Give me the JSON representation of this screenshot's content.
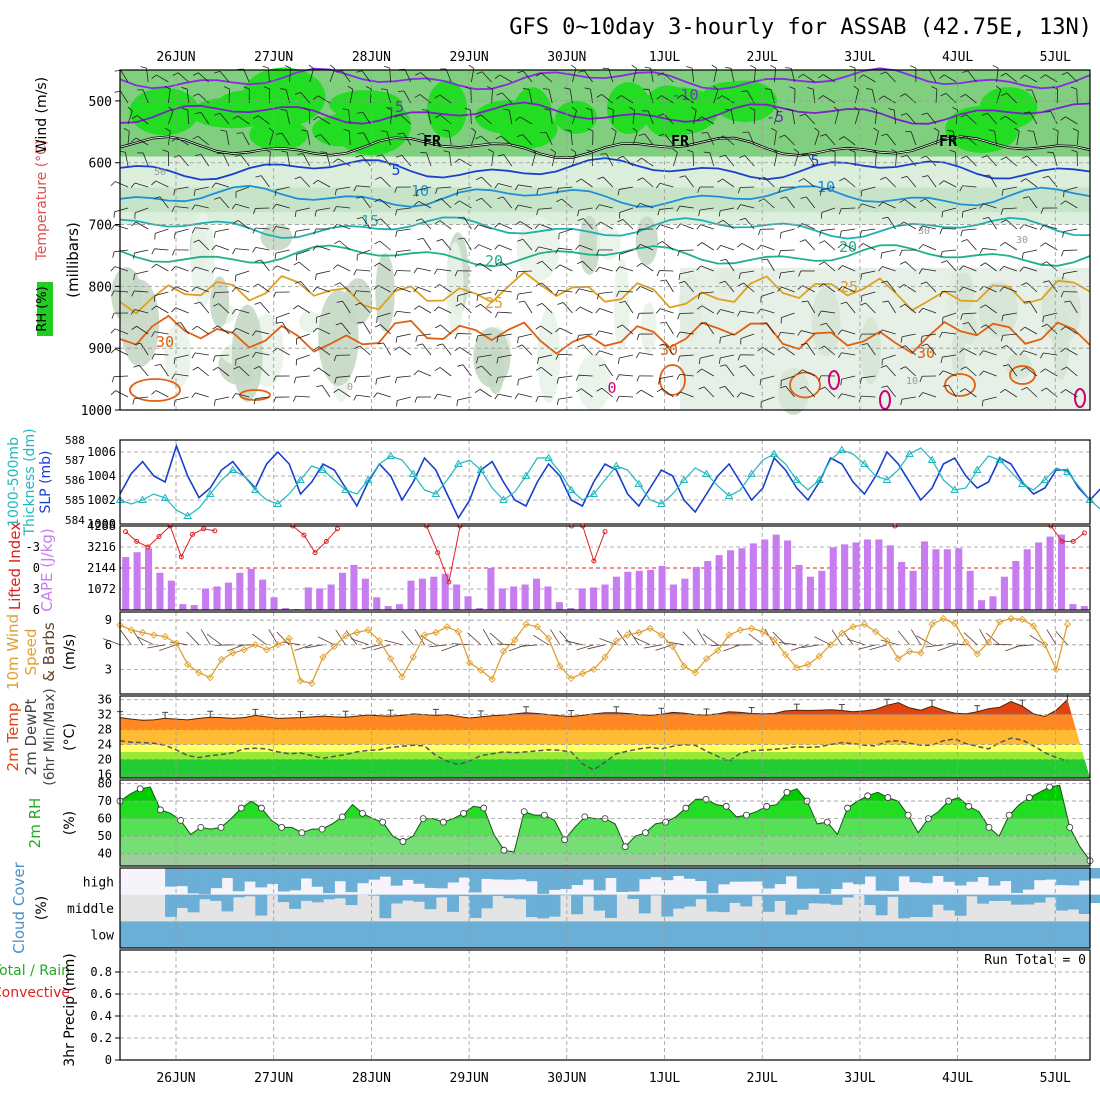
{
  "title": "GFS 0~10day 3-hourly for ASSAB (42.75E, 13N)",
  "dates": [
    "26JUN",
    "27JUN",
    "28JUN",
    "29JUN",
    "30JUN",
    "1JUL",
    "2JUL",
    "3JUL",
    "4JUL",
    "5JUL"
  ],
  "colors": {
    "rh_green": "#00dd00",
    "wind_black": "#000000",
    "slp_blue": "#1a3fcc",
    "thick_cyan": "#22b8c0",
    "li_red": "#e02020",
    "cape_purple": "#c77cf0",
    "wind10m_orange": "#e0a030",
    "temp_orange": "#f06010",
    "rh2m_green": "#22cc22",
    "cloud_blue": "#6baed6"
  },
  "chart_data": [
    {
      "type": "heatmap",
      "panel": "upper_air",
      "ylabels": [
        "RH (%)",
        "Temperature (°C)",
        "Wind (m/s)",
        "(millibars)"
      ],
      "y_ticks": [
        500,
        600,
        700,
        800,
        900,
        1000
      ],
      "ylim": [
        1000,
        450
      ],
      "contour_labels": [
        "-10",
        "-5",
        "-5",
        "FR",
        "FR",
        "FR",
        "5",
        "5",
        "10",
        "10",
        "15",
        "20",
        "20",
        "25",
        "25",
        "30",
        "30",
        "30",
        "0",
        "50",
        "30",
        "30",
        "10",
        "0"
      ],
      "isotherms": [
        {
          "label": "-10",
          "p": 465
        },
        {
          "label": "-5",
          "p": 520
        },
        {
          "label": "FR",
          "p": 575
        },
        {
          "label": "5",
          "p": 610
        },
        {
          "label": "10",
          "p": 655
        },
        {
          "label": "15",
          "p": 705
        },
        {
          "label": "20",
          "p": 750
        },
        {
          "label": "25",
          "p": 810
        },
        {
          "label": "30",
          "p": 880
        }
      ]
    },
    {
      "type": "line",
      "panel": "slp_thickness",
      "ylabels": [
        "1000-500mb",
        "Thickness (dm)",
        "SLP (mb)"
      ],
      "thickness_ticks": [
        "588",
        "587",
        "586",
        "585",
        "584"
      ],
      "slp_ticks": [
        "1006",
        "1004",
        "1002",
        "1000"
      ],
      "thickness_range": [
        583.8,
        588
      ],
      "slp_range": [
        1000,
        1007
      ],
      "series": [
        {
          "values": [
            1002.5,
            1004.2,
            1005.2,
            1004,
            1003.5,
            1006.5,
            1004,
            1002.2,
            1003,
            1004.5,
            1005.2,
            1004,
            1003,
            1005,
            1006,
            1005,
            1002.5,
            1003.5,
            1005,
            1004.5,
            1003,
            1001.5,
            1003.5,
            1005,
            1004,
            1002,
            1003.5,
            1005.5,
            1004.5,
            1002.5,
            1000.5,
            1002,
            1004.5,
            1005.2,
            1003.5,
            1002,
            1001.5,
            1003.5,
            1005,
            1004,
            1002,
            1001.5,
            1003.5,
            1005,
            1004.5,
            1002.5,
            1001.5,
            1003,
            1004.5,
            1004,
            1002,
            1001,
            1002.5,
            1004,
            1005,
            1003.5,
            1002,
            1003,
            1005.5,
            1004.5,
            1003,
            1002,
            1003.5,
            1005.5,
            1005,
            1003.5,
            1002.5,
            1004,
            1006,
            1005,
            1003.5,
            1002,
            1003,
            1005,
            1005.5,
            1004,
            1003,
            1003.5,
            1005.5,
            1005,
            1003.5,
            1002.5,
            1003,
            1004.5,
            1004.5,
            1003,
            1002,
            1003,
            1004.5,
            1004,
            1003.5,
            1002.5,
            1003.5,
            1004.8,
            1005.2
          ]
        },
        {
          "values": [
            585,
            584.8,
            585,
            585.3,
            585.1,
            584.5,
            584.2,
            584.6,
            585.3,
            586,
            586.5,
            586.2,
            585.5,
            585,
            584.8,
            585.3,
            586,
            586.7,
            586.5,
            586,
            585.5,
            585.3,
            586,
            586.8,
            587.2,
            587,
            586.3,
            585.5,
            585.3,
            586,
            586.8,
            587,
            586.5,
            585.6,
            585,
            585.4,
            586.2,
            587.1,
            587.1,
            586.4,
            585.5,
            585,
            585.3,
            586,
            586.7,
            586.5,
            585.8,
            585,
            584.8,
            585.3,
            586,
            586.6,
            586.3,
            585.7,
            585.2,
            585.5,
            586.3,
            587,
            587.3,
            586.8,
            586,
            585.5,
            586,
            587,
            587.5,
            587.3,
            586.8,
            586.2,
            586,
            586.5,
            587.3,
            587.6,
            587,
            586,
            585.5,
            585.6,
            586.5,
            587.2,
            587,
            586.4,
            585.8,
            585.5,
            586,
            586.6,
            586.4,
            585.7,
            585,
            584.5,
            584.8,
            585.5,
            586,
            585.5,
            584.5,
            584.2,
            585
          ]
        }
      ]
    },
    {
      "type": "bar",
      "panel": "li_cape",
      "ylabels": [
        "Lifted Index",
        "CAPE (J/kg)"
      ],
      "li_ticks": [
        "-3",
        "0",
        "3",
        "6"
      ],
      "cape_ticks": [
        "4288",
        "3216",
        "2144",
        "1072"
      ],
      "li_range": [
        -6,
        6
      ],
      "cape_range": [
        0,
        4288
      ],
      "series": [
        {
          "name": "CAPE",
          "values": [
            2700,
            2950,
            3150,
            1900,
            1500,
            300,
            250,
            1100,
            1200,
            1400,
            1900,
            2100,
            1550,
            650,
            100,
            50,
            1150,
            1100,
            1300,
            1900,
            2300,
            1600,
            650,
            200,
            300,
            1500,
            1600,
            1700,
            1850,
            1300,
            700,
            100,
            2150,
            1100,
            1200,
            1300,
            1600,
            1200,
            400,
            100,
            1100,
            1150,
            1300,
            1700,
            1950,
            2000,
            2050,
            2250,
            1300,
            1600,
            2200,
            2500,
            2800,
            3050,
            3150,
            3400,
            3600,
            3850,
            3550,
            2300,
            1700,
            2000,
            3200,
            3350,
            3450,
            3600,
            3600,
            3300,
            2450,
            2000,
            3500,
            3100,
            3100,
            3150,
            2000,
            500,
            700,
            1700,
            2500,
            3100,
            3450,
            3750,
            3850,
            300,
            200
          ]
        },
        {
          "name": "Lifted Index",
          "values": [
            -5.2,
            -3.8,
            -3,
            -4.5,
            -6,
            -1.6,
            -4.8,
            -5.6,
            -5.3,
            null,
            null,
            null,
            null,
            null,
            null,
            -6,
            -4.7,
            -2.2,
            -3.8,
            -5.6,
            null,
            null,
            null,
            null,
            null,
            null,
            null,
            -6,
            -2.2,
            2,
            -6,
            null,
            null,
            null,
            null,
            null,
            null,
            null,
            null,
            null,
            -6,
            -6,
            -1,
            -5.2,
            null,
            null,
            null,
            null,
            null,
            null,
            null,
            null,
            null,
            null,
            null,
            null,
            null,
            null,
            null,
            null,
            null,
            null,
            null,
            null,
            null,
            null,
            null,
            null,
            null,
            -6,
            null,
            null,
            null,
            null,
            null,
            null,
            null,
            null,
            null,
            null,
            null,
            null,
            null,
            -6,
            -3.8,
            -3.8,
            -5
          ]
        }
      ]
    },
    {
      "type": "line",
      "panel": "wind10m",
      "ylabels": [
        "10m Wind",
        "Speed",
        "& Barbs",
        "(m/s)"
      ],
      "y_ticks": [
        "9",
        "6",
        "3"
      ],
      "ylim": [
        0,
        10
      ],
      "series": [
        {
          "name": "Speed",
          "values": [
            8.4,
            7.8,
            7.5,
            7.2,
            7,
            6.2,
            3.6,
            2.6,
            2,
            4.2,
            5,
            5.4,
            6,
            5.4,
            6,
            6.8,
            1.6,
            1.3,
            4.5,
            5.8,
            7.1,
            7.5,
            7.8,
            6.5,
            4.3,
            2.1,
            4.5,
            7.2,
            7.5,
            8.2,
            7.6,
            3.8,
            2.9,
            1.8,
            5.2,
            6.6,
            8.5,
            8.2,
            6.8,
            3.4,
            1.9,
            2.5,
            3,
            4.5,
            6.5,
            7.2,
            7.5,
            8,
            7.2,
            5.8,
            3.4,
            2.6,
            4.3,
            5.3,
            7.2,
            7.8,
            8,
            7.6,
            6.6,
            4.8,
            3.2,
            3.6,
            4.6,
            6,
            7.4,
            8.2,
            8.5,
            7.6,
            6.5,
            4.3,
            5.2,
            5,
            8.5,
            9.2,
            8.6,
            6.3,
            4.9,
            6.3,
            8.8,
            9.2,
            9.1,
            8.3,
            6,
            3,
            8.5
          ]
        }
      ]
    },
    {
      "type": "area",
      "panel": "temp2m",
      "ylabels": [
        "2m Temp",
        "2m DewPt",
        "(6hr Min/Max)",
        "(°C)"
      ],
      "y_ticks": [
        "36",
        "32",
        "28",
        "24",
        "20",
        "16"
      ],
      "ylim": [
        15,
        37
      ],
      "series": [
        {
          "name": "Temp",
          "values": [
            31.2,
            30.8,
            30.5,
            30.6,
            31,
            30.8,
            30.6,
            31,
            31.3,
            31.2,
            31,
            31.2,
            31.8,
            31.4,
            31,
            31.1,
            31.2,
            31.4,
            31.6,
            31.4,
            31.3,
            31.6,
            31.9,
            31.7,
            31.6,
            31.8,
            32.2,
            32,
            31.8,
            32,
            31.5,
            31.1,
            31.4,
            31.7,
            31.9,
            32.2,
            32.5,
            32.3,
            32,
            31.7,
            31.5,
            31.8,
            32.2,
            32.5,
            32.5,
            32.3,
            32,
            31.8,
            32.1,
            32.6,
            32.4,
            32,
            31.9,
            32.2,
            32.8,
            32.6,
            32.3,
            32.2,
            32.3,
            33,
            33.2,
            33.1,
            33.2,
            33.3,
            33.1,
            32.8,
            33,
            33.4,
            34.5,
            35.2,
            33.8,
            33.2,
            34.3,
            33.2,
            32.4,
            32.2,
            32.8,
            33.6,
            34,
            35.5,
            34.3,
            32.2,
            31.5,
            33.2,
            36
          ]
        },
        {
          "name": "DewPt",
          "values": [
            25,
            24.6,
            24.5,
            24.3,
            23.8,
            22.5,
            21,
            20.5,
            21,
            21.3,
            21.8,
            22.8,
            23,
            22.8,
            22,
            21.5,
            21.7,
            21,
            20.3,
            20.8,
            21.3,
            22,
            22.4,
            22.6,
            23.2,
            23.5,
            23.8,
            23.6,
            21,
            19.5,
            18.6,
            19.6,
            21,
            21.5,
            22,
            21.8,
            22,
            22.3,
            22.6,
            22.4,
            22,
            18.8,
            17.2,
            19.2,
            21.5,
            22.2,
            22.8,
            23.2,
            22.8,
            23.5,
            24,
            23.8,
            22.2,
            20.8,
            19.5,
            21.6,
            22.3,
            22.5,
            22.7,
            23,
            23.4,
            23.2,
            23.4,
            24,
            24.5,
            24.2,
            23.8,
            23.6,
            24.8,
            25,
            24.3,
            23.8,
            23.8,
            25,
            25.5,
            24.2,
            23.5,
            22.8,
            24.5,
            25.7,
            25.2,
            23.6,
            21.8,
            20.5,
            19.5
          ]
        }
      ]
    },
    {
      "type": "area",
      "panel": "rh2m",
      "ylabels": [
        "2m RH",
        "(%)"
      ],
      "y_ticks": [
        "80",
        "70",
        "60",
        "50",
        "40"
      ],
      "ylim": [
        33,
        82
      ],
      "series": [
        {
          "name": "RH",
          "values": [
            70,
            74,
            77,
            78,
            65,
            63,
            59,
            51,
            55,
            54,
            55,
            60,
            66,
            70,
            66,
            59,
            55,
            55,
            52,
            54,
            54,
            57,
            61,
            68,
            63,
            60,
            58,
            50,
            47,
            50,
            60,
            60,
            58,
            60,
            63,
            67,
            66,
            51,
            42,
            41,
            64,
            62,
            62,
            59,
            48,
            55,
            61,
            60,
            60,
            57,
            44,
            50,
            52,
            57,
            58,
            61,
            66,
            71,
            71,
            68,
            67,
            61,
            62,
            64,
            67,
            68,
            75,
            77,
            70,
            57,
            58,
            51,
            66,
            70,
            73,
            75,
            72,
            70,
            62,
            52,
            60,
            64,
            70,
            72,
            67,
            64,
            55,
            50,
            62,
            68,
            72,
            75,
            78,
            79,
            55,
            44,
            36
          ]
        }
      ]
    },
    {
      "type": "bar",
      "panel": "cloud",
      "ylabels": [
        "Cloud Cover",
        "(%)"
      ],
      "y_tick_labels": [
        "high",
        "middle",
        "low"
      ]
    },
    {
      "type": "bar",
      "panel": "precip",
      "ylabels": [
        "Total / Rain",
        "Convective",
        "3hr Precip (mm)"
      ],
      "y_ticks": [
        "0.8",
        "0.6",
        "0.4",
        "0.2",
        "0"
      ],
      "ylim": [
        0,
        1
      ],
      "annotation": "Run Total = 0",
      "values": []
    }
  ]
}
